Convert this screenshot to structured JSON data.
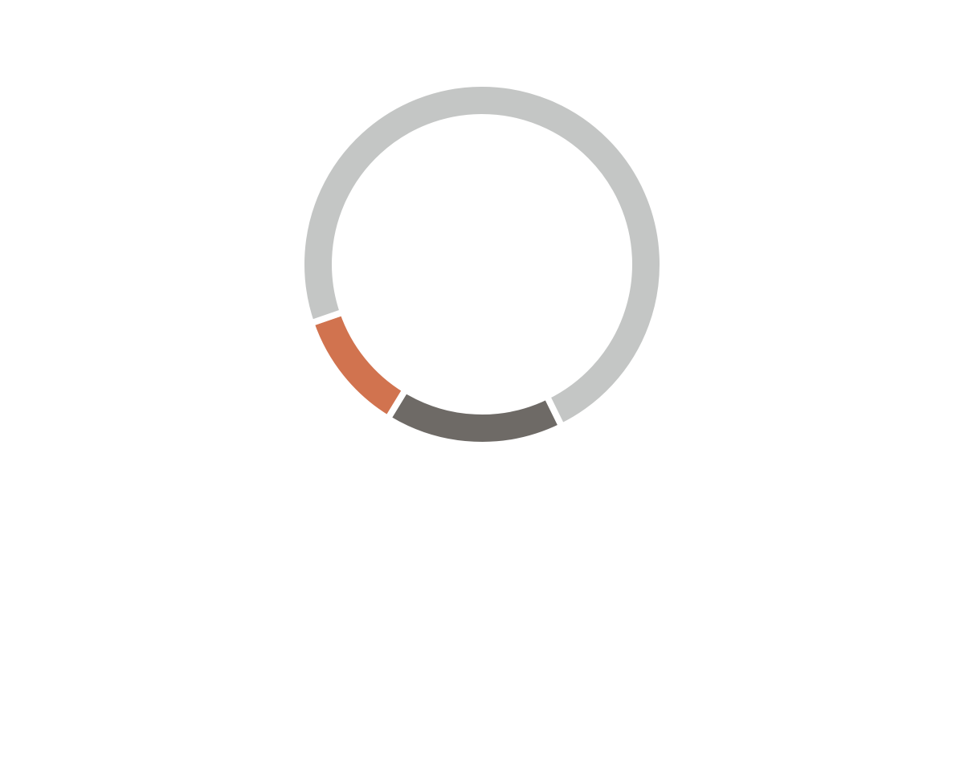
{
  "chart_data": {
    "type": "donut",
    "categories": [
      null,
      null,
      null
    ],
    "values": [
      16,
      11,
      73
    ],
    "colors": [
      "#6e6a66",
      "#d1734f",
      "#c4c6c5"
    ]
  }
}
